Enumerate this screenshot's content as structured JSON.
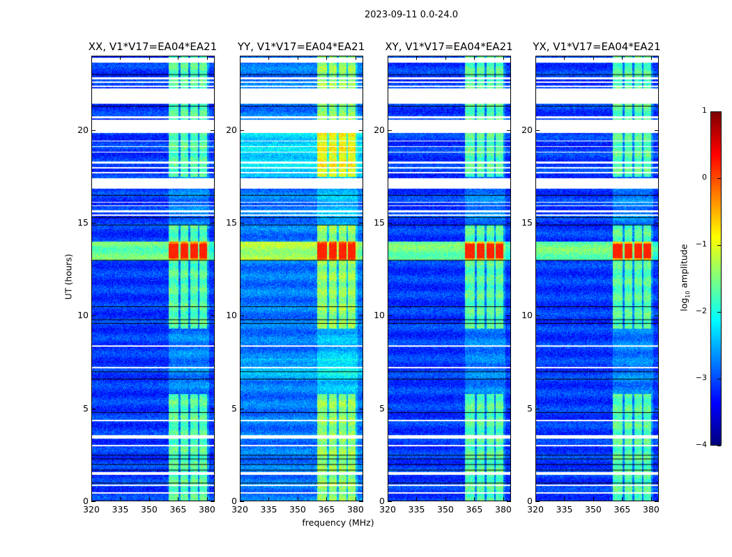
{
  "chart_data": {
    "type": "heatmap",
    "title": "2023-09-11 0.0-24.0",
    "xlabel": "frequency (MHz)",
    "ylabel": "UT (hours)",
    "xlim": [
      320,
      384
    ],
    "ylim": [
      0,
      24
    ],
    "xticks": [
      "320",
      "335",
      "350",
      "365",
      "380"
    ],
    "xtick_values": [
      320,
      335,
      350,
      365,
      380
    ],
    "yticks": [
      "0",
      "5",
      "10",
      "15",
      "20"
    ],
    "ytick_values": [
      0,
      5,
      10,
      15,
      20
    ],
    "panels": [
      {
        "title": "XX, V1*V17=EA04*EA21",
        "base_level": -3.1
      },
      {
        "title": "YY, V1*V17=EA04*EA21",
        "base_level": -2.8
      },
      {
        "title": "XY, V1*V17=EA04*EA21",
        "base_level": -3.1
      },
      {
        "title": "YX, V1*V17=EA04*EA21",
        "base_level": -3.1
      }
    ],
    "rfi_bands_mhz": [
      [
        360,
        365
      ],
      [
        366,
        370
      ],
      [
        371,
        375
      ],
      [
        376,
        380
      ]
    ],
    "strong_rfi_hours": [
      13.0,
      14.0
    ],
    "flagged_hours": [
      [
        23.65,
        23.9
      ],
      [
        22.75,
        22.85
      ],
      [
        22.55,
        22.62
      ],
      [
        22.35,
        22.42
      ],
      [
        21.45,
        22.25
      ],
      [
        20.65,
        20.75
      ],
      [
        19.85,
        20.55
      ],
      [
        19.4,
        19.45
      ],
      [
        19.1,
        19.15
      ],
      [
        18.8,
        18.85
      ],
      [
        18.2,
        18.3
      ],
      [
        17.95,
        18.0
      ],
      [
        17.7,
        17.75
      ],
      [
        16.85,
        17.4
      ],
      [
        16.1,
        16.15
      ],
      [
        15.9,
        15.95
      ],
      [
        15.6,
        15.7
      ],
      [
        15.4,
        15.45
      ],
      [
        8.35,
        8.4
      ],
      [
        7.2,
        7.25
      ],
      [
        4.35,
        4.4
      ],
      [
        3.4,
        3.6
      ],
      [
        3.0,
        3.05
      ],
      [
        1.45,
        1.6
      ],
      [
        0.85,
        0.9
      ],
      [
        0.45,
        0.5
      ]
    ],
    "black_line_hours": [
      23.0,
      21.3,
      16.5,
      15.3,
      14.9,
      13.0,
      10.5,
      9.8,
      9.6,
      7.0,
      6.6,
      4.8,
      2.5,
      2.3,
      2.0,
      1.7,
      1.0
    ],
    "colorbar": {
      "label": "log10 amplitude",
      "range": [
        -4,
        1
      ],
      "ticks": [
        "1",
        "0",
        "−1",
        "−2",
        "−3",
        "−4"
      ],
      "tick_values": [
        1,
        0,
        -1,
        -2,
        -3,
        -4
      ]
    }
  }
}
